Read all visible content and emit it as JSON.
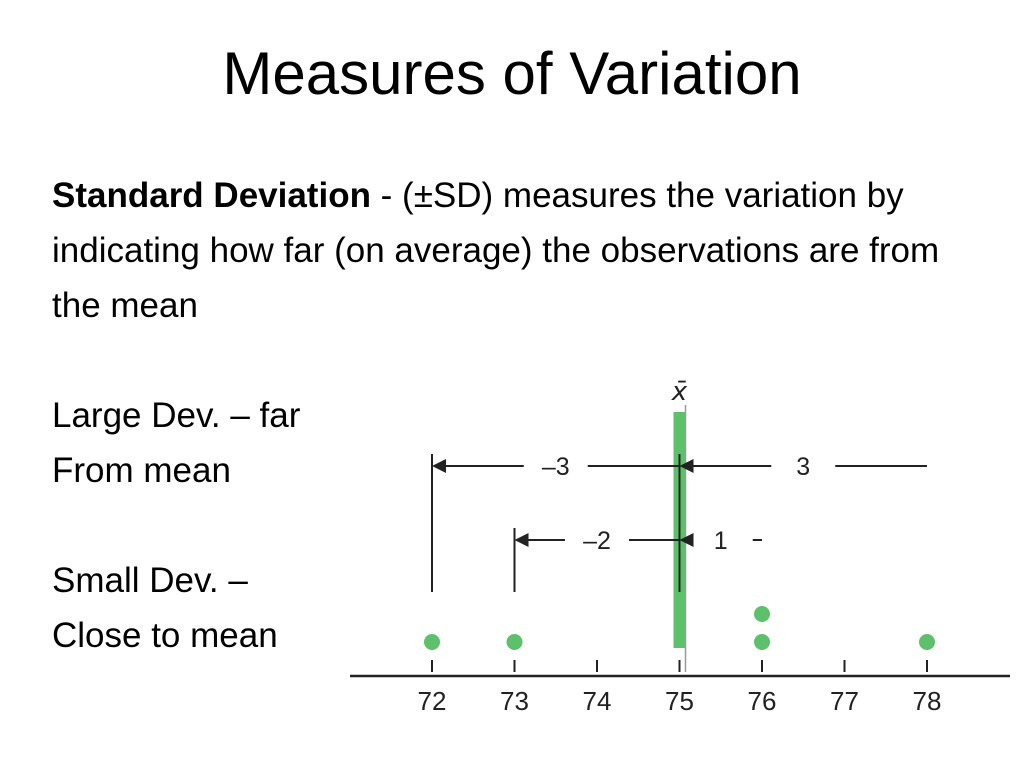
{
  "title": "Measures of Variation",
  "definition": {
    "term": "Standard Deviation",
    "text": " - (±SD) measures the variation by indicating how far (on average) the observations are from the mean"
  },
  "notes": {
    "large_line1": "Large Dev. – far",
    "large_line2": "From mean",
    "small_line1": "Small Dev. –",
    "small_line2": "Close to mean"
  },
  "diagram": {
    "mean_label": "x̄",
    "axis_ticks": [
      "72",
      "73",
      "74",
      "75",
      "76",
      "77",
      "78"
    ],
    "mean_value": 75,
    "deviations": [
      {
        "label": "–3",
        "from": 72,
        "to": 75
      },
      {
        "label": "3",
        "from": 75,
        "to": 78
      },
      {
        "label": "–2",
        "from": 73,
        "to": 75
      },
      {
        "label": "1",
        "from": 75,
        "to": 76
      }
    ],
    "observations": [
      72,
      73,
      76,
      76,
      78
    ],
    "colors": {
      "mean_bar": "#5cc16a",
      "dots": "#5cc16a",
      "ink": "#222222"
    }
  }
}
